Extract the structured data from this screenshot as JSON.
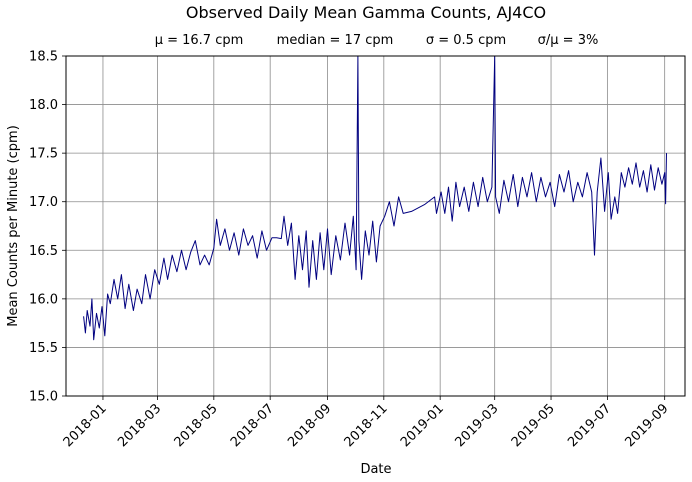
{
  "chart_data": {
    "type": "line",
    "title": "Observed Daily Mean Gamma Counts, AJ4CO",
    "subtitle": {
      "mean": "μ = 16.7 cpm",
      "median": "median = 17 cpm",
      "std": "σ = 0.5 cpm",
      "cv": "σ/μ = 3%"
    },
    "xlabel": "Date",
    "ylabel": "Mean Counts per Minute (cpm)",
    "xlim": [
      "2017-11-22",
      "2019-09-23"
    ],
    "ylim": [
      15.0,
      18.5
    ],
    "yticks": [
      15.0,
      15.5,
      16.0,
      16.5,
      17.0,
      17.5,
      18.0,
      18.5
    ],
    "ytick_labels": [
      "15.0",
      "15.5",
      "16.0",
      "16.5",
      "17.0",
      "17.5",
      "18.0",
      "18.5"
    ],
    "xticks": [
      "2018-01-01",
      "2018-03-01",
      "2018-05-01",
      "2018-07-01",
      "2018-09-01",
      "2018-11-01",
      "2019-01-01",
      "2019-03-01",
      "2019-05-01",
      "2019-07-01",
      "2019-09-01"
    ],
    "xtick_labels": [
      "2018-01",
      "2018-03",
      "2018-05",
      "2018-07",
      "2018-09",
      "2018-11",
      "2019-01",
      "2019-03",
      "2019-05",
      "2019-07",
      "2019-09"
    ],
    "grid": true,
    "line_color": "#000080",
    "series": [
      {
        "points": [
          [
            "2017-12-11",
            15.82
          ],
          [
            "2017-12-13",
            15.65
          ],
          [
            "2017-12-15",
            15.88
          ],
          [
            "2017-12-18",
            15.72
          ],
          [
            "2017-12-20",
            16.0
          ],
          [
            "2017-12-22",
            15.58
          ],
          [
            "2017-12-25",
            15.85
          ],
          [
            "2017-12-28",
            15.7
          ],
          [
            "2017-12-31",
            15.92
          ],
          [
            "2018-01-03",
            15.62
          ],
          [
            "2018-01-06",
            16.05
          ],
          [
            "2018-01-09",
            15.95
          ],
          [
            "2018-01-13",
            16.2
          ],
          [
            "2018-01-17",
            16.0
          ],
          [
            "2018-01-21",
            16.25
          ],
          [
            "2018-01-25",
            15.9
          ],
          [
            "2018-01-29",
            16.15
          ],
          [
            "2018-02-03",
            15.88
          ],
          [
            "2018-02-07",
            16.1
          ],
          [
            "2018-02-12",
            15.95
          ],
          [
            "2018-02-16",
            16.25
          ],
          [
            "2018-02-21",
            16.0
          ],
          [
            "2018-02-26",
            16.3
          ],
          [
            "2018-03-03",
            16.15
          ],
          [
            "2018-03-08",
            16.42
          ],
          [
            "2018-03-12",
            16.2
          ],
          [
            "2018-03-17",
            16.45
          ],
          [
            "2018-03-22",
            16.28
          ],
          [
            "2018-03-27",
            16.5
          ],
          [
            "2018-04-01",
            16.3
          ],
          [
            "2018-04-06",
            16.48
          ],
          [
            "2018-04-11",
            16.6
          ],
          [
            "2018-04-16",
            16.35
          ],
          [
            "2018-04-21",
            16.45
          ],
          [
            "2018-04-26",
            16.35
          ],
          [
            "2018-05-01",
            16.52
          ],
          [
            "2018-05-04",
            16.82
          ],
          [
            "2018-05-08",
            16.55
          ],
          [
            "2018-05-13",
            16.72
          ],
          [
            "2018-05-18",
            16.5
          ],
          [
            "2018-05-23",
            16.68
          ],
          [
            "2018-05-28",
            16.45
          ],
          [
            "2018-06-02",
            16.72
          ],
          [
            "2018-06-07",
            16.55
          ],
          [
            "2018-06-12",
            16.65
          ],
          [
            "2018-06-17",
            16.42
          ],
          [
            "2018-06-22",
            16.7
          ],
          [
            "2018-06-27",
            16.5
          ],
          [
            "2018-07-03",
            16.63
          ],
          [
            "2018-07-08",
            16.63
          ],
          [
            "2018-07-13",
            16.62
          ],
          [
            "2018-07-16",
            16.85
          ],
          [
            "2018-07-20",
            16.55
          ],
          [
            "2018-07-24",
            16.78
          ],
          [
            "2018-07-28",
            16.2
          ],
          [
            "2018-08-01",
            16.65
          ],
          [
            "2018-08-05",
            16.3
          ],
          [
            "2018-08-09",
            16.7
          ],
          [
            "2018-08-12",
            16.12
          ],
          [
            "2018-08-16",
            16.6
          ],
          [
            "2018-08-20",
            16.2
          ],
          [
            "2018-08-24",
            16.68
          ],
          [
            "2018-08-28",
            16.3
          ],
          [
            "2018-09-01",
            16.72
          ],
          [
            "2018-09-05",
            16.25
          ],
          [
            "2018-09-10",
            16.65
          ],
          [
            "2018-09-15",
            16.4
          ],
          [
            "2018-09-20",
            16.78
          ],
          [
            "2018-09-25",
            16.45
          ],
          [
            "2018-09-29",
            16.85
          ],
          [
            "2018-10-02",
            16.3
          ],
          [
            "2018-10-04",
            18.5
          ],
          [
            "2018-10-05",
            16.6
          ],
          [
            "2018-10-08",
            16.2
          ],
          [
            "2018-10-12",
            16.7
          ],
          [
            "2018-10-16",
            16.45
          ],
          [
            "2018-10-20",
            16.8
          ],
          [
            "2018-10-24",
            16.38
          ],
          [
            "2018-10-28",
            16.75
          ],
          [
            "2018-11-02",
            16.85
          ],
          [
            "2018-11-07",
            17.0
          ],
          [
            "2018-11-12",
            16.75
          ],
          [
            "2018-11-17",
            17.05
          ],
          [
            "2018-11-22",
            16.88
          ],
          [
            "2018-12-01",
            16.9
          ],
          [
            "2018-12-15",
            16.97
          ],
          [
            "2018-12-26",
            17.05
          ],
          [
            "2018-12-28",
            16.88
          ],
          [
            "2019-01-02",
            17.1
          ],
          [
            "2019-01-06",
            16.88
          ],
          [
            "2019-01-10",
            17.15
          ],
          [
            "2019-01-14",
            16.8
          ],
          [
            "2019-01-18",
            17.2
          ],
          [
            "2019-01-22",
            16.95
          ],
          [
            "2019-01-27",
            17.15
          ],
          [
            "2019-02-01",
            16.9
          ],
          [
            "2019-02-06",
            17.2
          ],
          [
            "2019-02-11",
            16.95
          ],
          [
            "2019-02-16",
            17.25
          ],
          [
            "2019-02-21",
            17.0
          ],
          [
            "2019-02-26",
            17.15
          ],
          [
            "2019-03-01",
            18.5
          ],
          [
            "2019-03-02",
            17.05
          ],
          [
            "2019-03-06",
            16.88
          ],
          [
            "2019-03-11",
            17.22
          ],
          [
            "2019-03-16",
            17.0
          ],
          [
            "2019-03-21",
            17.28
          ],
          [
            "2019-03-26",
            16.95
          ],
          [
            "2019-03-31",
            17.25
          ],
          [
            "2019-04-05",
            17.05
          ],
          [
            "2019-04-10",
            17.3
          ],
          [
            "2019-04-15",
            17.0
          ],
          [
            "2019-04-20",
            17.25
          ],
          [
            "2019-04-25",
            17.05
          ],
          [
            "2019-04-30",
            17.2
          ],
          [
            "2019-05-05",
            16.95
          ],
          [
            "2019-05-10",
            17.28
          ],
          [
            "2019-05-15",
            17.1
          ],
          [
            "2019-05-20",
            17.32
          ],
          [
            "2019-05-25",
            17.0
          ],
          [
            "2019-05-30",
            17.2
          ],
          [
            "2019-06-04",
            17.05
          ],
          [
            "2019-06-09",
            17.3
          ],
          [
            "2019-06-14",
            17.1
          ],
          [
            "2019-06-17",
            16.45
          ],
          [
            "2019-06-20",
            17.1
          ],
          [
            "2019-06-24",
            17.45
          ],
          [
            "2019-06-28",
            16.9
          ],
          [
            "2019-07-02",
            17.3
          ],
          [
            "2019-07-05",
            16.82
          ],
          [
            "2019-07-09",
            17.05
          ],
          [
            "2019-07-12",
            16.88
          ],
          [
            "2019-07-16",
            17.3
          ],
          [
            "2019-07-20",
            17.15
          ],
          [
            "2019-07-24",
            17.35
          ],
          [
            "2019-07-28",
            17.18
          ],
          [
            "2019-08-01",
            17.4
          ],
          [
            "2019-08-05",
            17.15
          ],
          [
            "2019-08-09",
            17.32
          ],
          [
            "2019-08-13",
            17.1
          ],
          [
            "2019-08-17",
            17.38
          ],
          [
            "2019-08-21",
            17.12
          ],
          [
            "2019-08-25",
            17.35
          ],
          [
            "2019-08-29",
            17.18
          ],
          [
            "2019-09-01",
            17.3
          ],
          [
            "2019-09-02",
            16.98
          ],
          [
            "2019-09-03",
            17.5
          ]
        ]
      }
    ]
  }
}
